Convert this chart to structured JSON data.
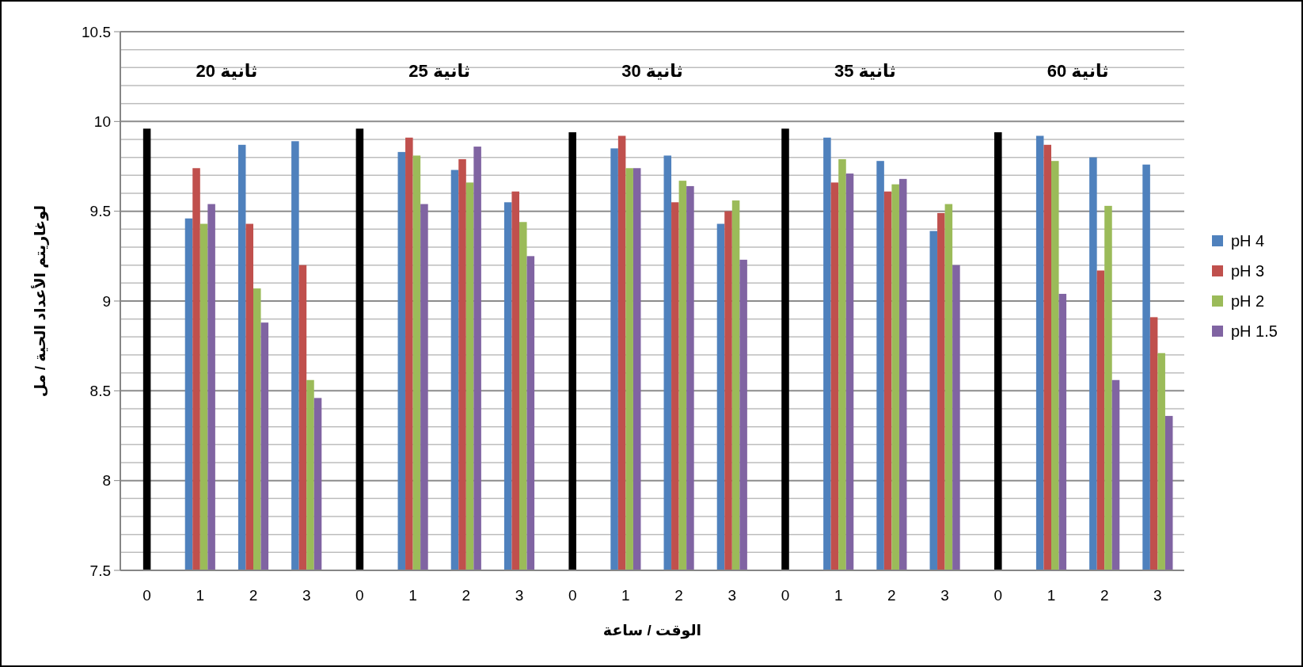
{
  "chart_data": {
    "type": "bar",
    "xlabel": "الوقت / ساعة",
    "ylabel": "لوغاريتم الأعداد الحية / مل",
    "annotations": [
      "20 ثانية",
      "25 ثانية",
      "30 ثانية",
      "35 ثانية",
      "60 ثانية"
    ],
    "categories": [
      "0",
      "1",
      "2",
      "3",
      "0",
      "1",
      "2",
      "3",
      "0",
      "1",
      "2",
      "3",
      "0",
      "1",
      "2",
      "3",
      "0",
      "1",
      "2",
      "3"
    ],
    "series": [
      {
        "color": "#000000",
        "values": [
          9.96,
          null,
          null,
          null,
          9.96,
          null,
          null,
          null,
          9.94,
          null,
          null,
          null,
          9.96,
          null,
          null,
          null,
          9.94,
          null,
          null,
          null
        ]
      },
      {
        "name": "pH 4",
        "color": "#4f81bd",
        "values": [
          null,
          9.46,
          9.87,
          9.89,
          null,
          9.83,
          9.73,
          9.55,
          null,
          9.85,
          9.81,
          9.43,
          null,
          9.91,
          9.78,
          9.39,
          null,
          9.92,
          9.8,
          9.76
        ]
      },
      {
        "name": "pH 3",
        "color": "#c0504d",
        "values": [
          null,
          9.74,
          9.43,
          9.2,
          null,
          9.91,
          9.79,
          9.61,
          null,
          9.92,
          9.55,
          9.5,
          null,
          9.66,
          9.61,
          9.49,
          null,
          9.87,
          9.17,
          8.91
        ]
      },
      {
        "name": "pH 2",
        "color": "#9bbb59",
        "values": [
          null,
          9.43,
          9.07,
          8.56,
          null,
          9.81,
          9.66,
          9.44,
          null,
          9.74,
          9.67,
          9.56,
          null,
          9.79,
          9.65,
          9.54,
          null,
          9.78,
          9.53,
          8.71
        ]
      },
      {
        "name": "pH 1.5",
        "color": "#8064a2",
        "values": [
          null,
          9.54,
          8.88,
          8.46,
          null,
          9.54,
          9.86,
          9.25,
          null,
          9.74,
          9.64,
          9.23,
          null,
          9.71,
          9.68,
          9.2,
          null,
          9.04,
          8.56,
          8.36
        ]
      }
    ],
    "ylim": [
      7.5,
      10.5
    ],
    "yticks": [
      7.5,
      {
        "value": 7.6,
        "label": null
      },
      {
        "value": 7.7,
        "label": null
      },
      {
        "value": 7.8,
        "label": null
      },
      {
        "value": 7.9,
        "label": null
      },
      8,
      {
        "value": 8.1,
        "label": null
      },
      {
        "value": 8.2,
        "label": null
      },
      {
        "value": 8.3,
        "label": null
      },
      {
        "value": 8.4,
        "label": null
      },
      8.5,
      {
        "value": 8.6,
        "label": null
      },
      {
        "value": 8.7,
        "label": null
      },
      {
        "value": 8.8,
        "label": null
      },
      {
        "value": 8.9,
        "label": null
      },
      9,
      {
        "value": 9.1,
        "label": null
      },
      {
        "value": 9.2,
        "label": null
      },
      {
        "value": 9.3,
        "label": null
      },
      {
        "value": 9.4,
        "label": null
      },
      9.5,
      {
        "value": 9.6,
        "label": null
      },
      {
        "value": 9.7,
        "label": null
      },
      {
        "value": 9.8,
        "label": null
      },
      {
        "value": 9.9,
        "label": null
      },
      10,
      {
        "value": 10.1,
        "label": null
      },
      {
        "value": 10.2,
        "label": null
      },
      {
        "value": 10.3,
        "label": null
      },
      {
        "value": 10.4,
        "label": null
      },
      10.5
    ],
    "grid": "y",
    "legend": "right"
  }
}
